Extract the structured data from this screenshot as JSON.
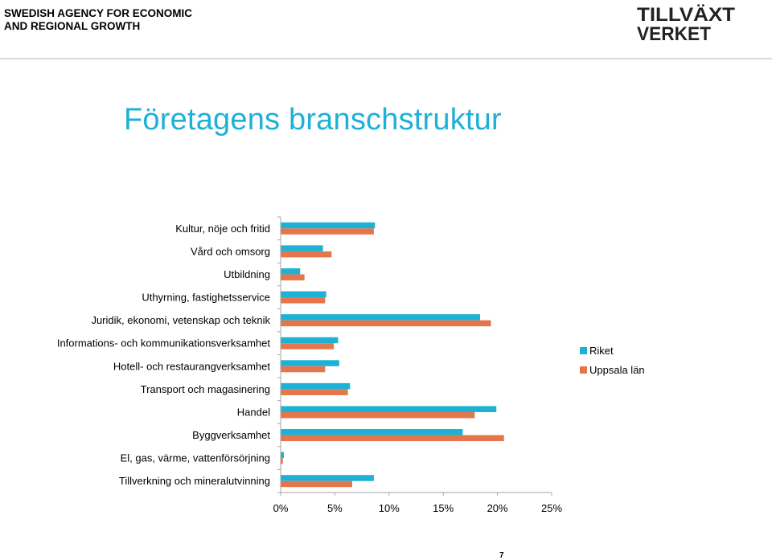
{
  "header": {
    "agency_line1": "SWEDISH AGENCY FOR ECONOMIC",
    "agency_line2": "AND REGIONAL GROWTH",
    "logo_line1": "TILLVÄXT",
    "logo_line2": "VERKET"
  },
  "slide": {
    "title": "Företagens branschstruktur",
    "page_number": "7"
  },
  "colors": {
    "riket": "#1eb1d6",
    "uppsala": "#e5764b",
    "title": "#1eb1d6",
    "axis": "#a6a6a6"
  },
  "chart_data": {
    "type": "bar",
    "orientation": "horizontal",
    "title": "",
    "xlabel": "",
    "ylabel": "",
    "xlim": [
      0,
      25
    ],
    "x_ticks": [
      "0%",
      "5%",
      "10%",
      "15%",
      "20%",
      "25%"
    ],
    "x_tick_values": [
      0,
      5,
      10,
      15,
      20,
      25
    ],
    "grid": false,
    "legend_position": "right",
    "categories": [
      "Kultur, nöje och fritid",
      "Vård och omsorg",
      "Utbildning",
      "Uthyrning, fastighetsservice",
      "Juridik, ekonomi, vetenskap och teknik",
      "Informations- och kommunikationsverksamhet",
      "Hotell- och restaurangverksamhet",
      "Transport och magasinering",
      "Handel",
      "Byggverksamhet",
      "El, gas, värme, vattenförsörjning",
      "Tillverkning och mineralutvinning"
    ],
    "series": [
      {
        "name": "Riket",
        "values": [
          8.7,
          3.9,
          1.8,
          4.2,
          18.4,
          5.3,
          5.4,
          6.4,
          19.9,
          16.8,
          0.3,
          8.6
        ]
      },
      {
        "name": "Uppsala län",
        "values": [
          8.6,
          4.7,
          2.2,
          4.1,
          19.4,
          4.9,
          4.1,
          6.2,
          17.9,
          20.6,
          0.2,
          6.6
        ]
      }
    ]
  }
}
